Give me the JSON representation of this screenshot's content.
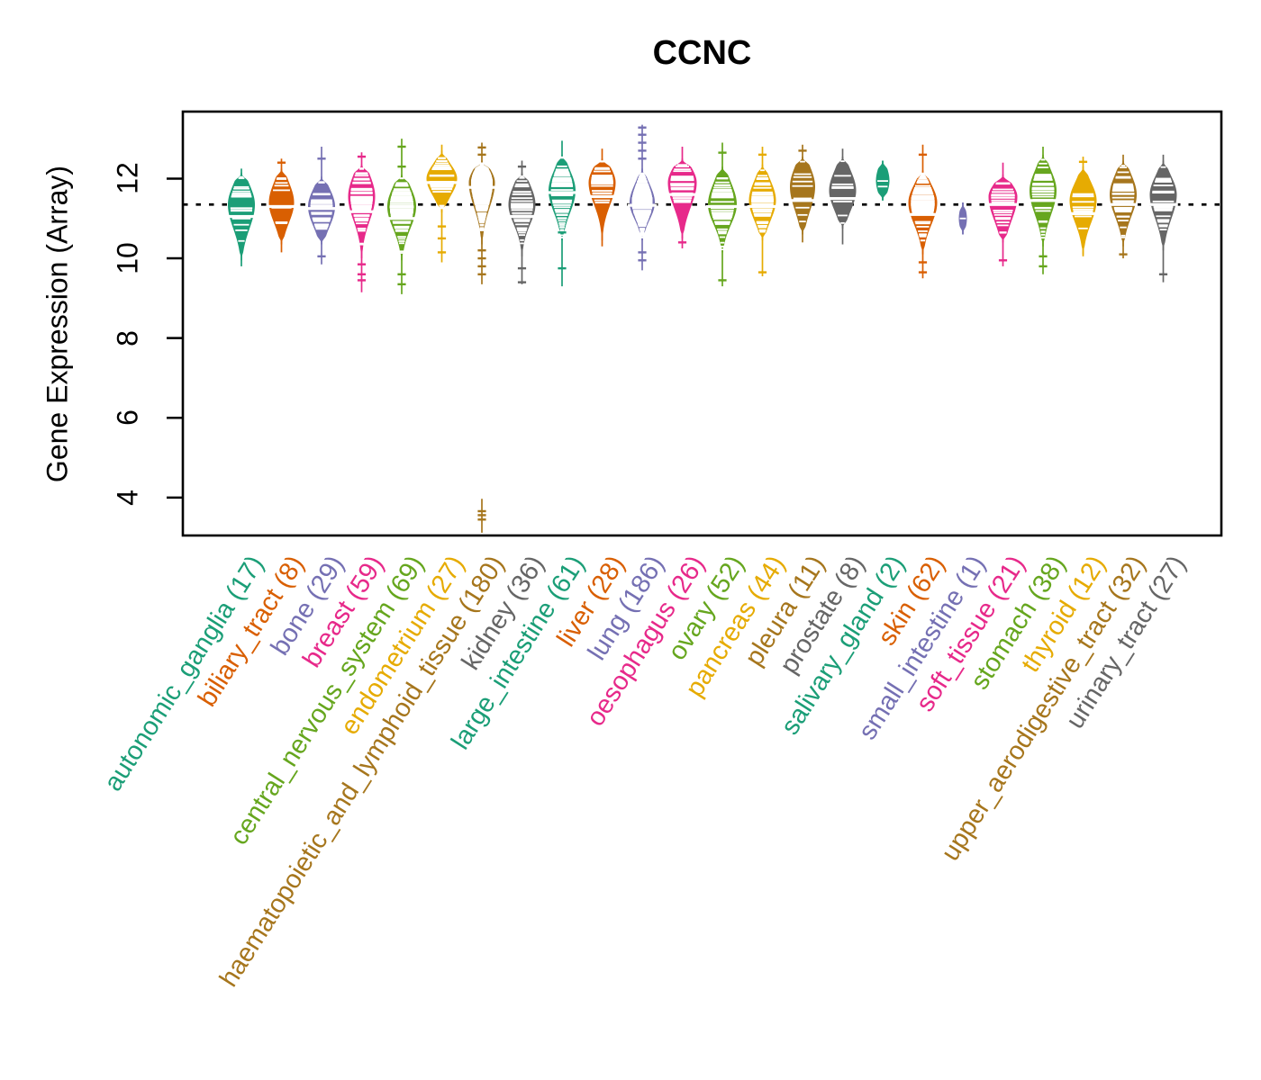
{
  "chart_data": {
    "type": "violin",
    "style": "beanplot",
    "title": "CCNC",
    "ylabel": "Gene Expression (Array)",
    "yticks": [
      4,
      6,
      8,
      10,
      12
    ],
    "ylim": [
      3.05,
      13.68
    ],
    "grid": false,
    "overall_mean_line": 11.35,
    "overall_mean_line_style": "dotted-black",
    "palette_name": "Dark2",
    "categories": [
      {
        "label": "autonomic_ganglia",
        "n": 17,
        "color": "#1B9E77",
        "body": [
          9.95,
          12.15
        ],
        "peak": 11.35,
        "spread_above": 0.5,
        "spread_below": 0.6,
        "median_line": 11.05,
        "whiskers": [
          9.8,
          12.25
        ],
        "marks": [],
        "halfwidth": 15
      },
      {
        "label": "biliary_tract",
        "n": 8,
        "color": "#D95F02",
        "body": [
          10.35,
          12.25
        ],
        "peak": 11.4,
        "spread_above": 0.5,
        "spread_below": 0.5,
        "median_line": 11.3,
        "whiskers": [
          10.15,
          12.5
        ],
        "marks": [
          12.4
        ],
        "halfwidth": 14
      },
      {
        "label": "bone",
        "n": 29,
        "color": "#7570B3",
        "body": [
          10.35,
          12.05
        ],
        "peak": 11.3,
        "spread_above": 0.45,
        "spread_below": 0.5,
        "median_line": 11.25,
        "whiskers": [
          9.85,
          12.8
        ],
        "marks": [
          10.05,
          12.5
        ],
        "halfwidth": 15
      },
      {
        "label": "breast",
        "n": 59,
        "color": "#E7298A",
        "body": [
          10.0,
          12.35
        ],
        "peak": 11.55,
        "spread_above": 0.55,
        "spread_below": 0.6,
        "median_line": 11.17,
        "whiskers": [
          9.15,
          12.66
        ],
        "marks": [
          9.45,
          9.6,
          9.85,
          12.55
        ],
        "halfwidth": 15
      },
      {
        "label": "central_nervous_system",
        "n": 69,
        "color": "#66A61E",
        "body": [
          9.95,
          12.1
        ],
        "peak": 11.3,
        "spread_above": 0.5,
        "spread_below": 0.55,
        "median_line": 11.0,
        "whiskers": [
          9.1,
          13.0
        ],
        "marks": [
          9.35,
          9.6,
          12.3,
          12.8
        ],
        "halfwidth": 16
      },
      {
        "label": "endometrium",
        "n": 27,
        "color": "#E6AB02",
        "body": [
          11.15,
          12.7
        ],
        "peak": 12.0,
        "spread_above": 0.35,
        "spread_below": 0.42,
        "median_line": 11.9,
        "whiskers": [
          9.9,
          12.85
        ],
        "marks": [
          10.15,
          10.5,
          10.8
        ],
        "halfwidth": 17
      },
      {
        "label": "haematopoietic_and_lymphoid_tissue",
        "n": 180,
        "color": "#A6761D",
        "body": [
          10.35,
          12.45
        ],
        "peak": 11.9,
        "spread_above": 0.36,
        "spread_below": 0.62,
        "median_line": 11.78,
        "whiskers": [
          9.35,
          12.9
        ],
        "marks": [
          9.6,
          9.8,
          10.0,
          10.2,
          12.6,
          12.78
        ],
        "outlier_stem": [
          3.12,
          3.97
        ],
        "outlier_marks": [
          3.45,
          3.56,
          3.66
        ],
        "halfwidth": 14.5
      },
      {
        "label": "kidney",
        "n": 36,
        "color": "#666666",
        "body": [
          10.05,
          12.15
        ],
        "peak": 11.35,
        "spread_above": 0.5,
        "spread_below": 0.5,
        "median_line": 11.05,
        "whiskers": [
          9.35,
          12.45
        ],
        "marks": [
          9.4,
          9.75,
          12.3
        ],
        "halfwidth": 15
      },
      {
        "label": "large_intestine",
        "n": 61,
        "color": "#1B9E77",
        "body": [
          10.45,
          12.6
        ],
        "peak": 11.7,
        "spread_above": 0.5,
        "spread_below": 0.55,
        "median_line": 11.65,
        "whiskers": [
          9.3,
          12.95
        ],
        "marks": [
          9.75,
          10.65
        ],
        "halfwidth": 15
      },
      {
        "label": "liver",
        "n": 28,
        "color": "#D95F02",
        "body": [
          10.45,
          12.5
        ],
        "peak": 11.9,
        "spread_above": 0.4,
        "spread_below": 0.55,
        "median_line": 11.55,
        "whiskers": [
          10.3,
          12.75
        ],
        "marks": [],
        "halfwidth": 15
      },
      {
        "label": "lung",
        "n": 186,
        "color": "#7570B3",
        "body": [
          10.45,
          12.25
        ],
        "peak": 11.4,
        "spread_above": 0.45,
        "spread_below": 0.42,
        "median_line": 11.33,
        "whiskers": [
          9.7,
          13.35
        ],
        "marks": [
          9.95,
          10.15,
          12.5,
          12.7,
          12.9,
          13.1,
          13.28
        ],
        "halfwidth": 14
      },
      {
        "label": "oesophagus",
        "n": 26,
        "color": "#E7298A",
        "body": [
          10.5,
          12.5
        ],
        "peak": 11.9,
        "spread_above": 0.4,
        "spread_below": 0.6,
        "median_line": 11.6,
        "whiskers": [
          10.25,
          12.8
        ],
        "marks": [
          10.4
        ],
        "halfwidth": 16
      },
      {
        "label": "ovary",
        "n": 52,
        "color": "#66A61E",
        "body": [
          10.15,
          12.3
        ],
        "peak": 11.35,
        "spread_above": 0.55,
        "spread_below": 0.5,
        "median_line": 11.3,
        "whiskers": [
          9.3,
          12.9
        ],
        "marks": [
          9.45,
          12.65
        ],
        "halfwidth": 16
      },
      {
        "label": "pancreas",
        "n": 44,
        "color": "#E6AB02",
        "body": [
          10.45,
          12.35
        ],
        "peak": 11.45,
        "spread_above": 0.5,
        "spread_below": 0.5,
        "median_line": 11.3,
        "whiskers": [
          9.55,
          12.8
        ],
        "marks": [
          9.65,
          12.6
        ],
        "halfwidth": 15
      },
      {
        "label": "pleura",
        "n": 11,
        "color": "#A6761D",
        "body": [
          10.6,
          12.55
        ],
        "peak": 11.8,
        "spread_above": 0.5,
        "spread_below": 0.6,
        "median_line": 11.45,
        "whiskers": [
          10.4,
          12.85
        ],
        "marks": [
          12.7
        ],
        "halfwidth": 14
      },
      {
        "label": "prostate",
        "n": 8,
        "color": "#666666",
        "body": [
          10.75,
          12.55
        ],
        "peak": 11.7,
        "spread_above": 0.5,
        "spread_below": 0.5,
        "median_line": 11.5,
        "whiskers": [
          10.35,
          12.75
        ],
        "marks": [],
        "halfwidth": 15
      },
      {
        "label": "salivary_gland",
        "n": 2,
        "color": "#1B9E77",
        "body": [
          11.45,
          12.45
        ],
        "peak": 11.95,
        "spread_above": 0.35,
        "spread_below": 0.35,
        "median_line": null,
        "whiskers": [
          11.45,
          12.45
        ],
        "lines": [
          11.8,
          11.94
        ],
        "marks": [],
        "halfwidth": 7.5
      },
      {
        "label": "skin",
        "n": 62,
        "color": "#D95F02",
        "body": [
          10.1,
          12.2
        ],
        "peak": 11.4,
        "spread_above": 0.45,
        "spread_below": 0.55,
        "median_line": 11.1,
        "whiskers": [
          9.5,
          12.85
        ],
        "marks": [
          9.65,
          9.9,
          12.6
        ],
        "halfwidth": 16
      },
      {
        "label": "small_intestine",
        "n": 1,
        "color": "#7570B3",
        "body": [
          10.6,
          11.4
        ],
        "peak": 11.0,
        "spread_above": 0.28,
        "spread_below": 0.28,
        "median_line": null,
        "whiskers": [
          10.6,
          11.4
        ],
        "lines": [
          11.0
        ],
        "marks": [],
        "halfwidth": 4.5
      },
      {
        "label": "soft_tissue",
        "n": 21,
        "color": "#E7298A",
        "body": [
          10.4,
          12.1
        ],
        "peak": 11.55,
        "spread_above": 0.33,
        "spread_below": 0.6,
        "median_line": 11.35,
        "whiskers": [
          9.8,
          12.4
        ],
        "marks": [
          9.95
        ],
        "halfwidth": 16
      },
      {
        "label": "stomach",
        "n": 38,
        "color": "#66A61E",
        "body": [
          10.3,
          12.6
        ],
        "peak": 11.7,
        "spread_above": 0.5,
        "spread_below": 0.6,
        "median_line": 11.45,
        "whiskers": [
          9.6,
          12.8
        ],
        "marks": [
          9.8,
          10.05
        ],
        "halfwidth": 15
      },
      {
        "label": "thyroid",
        "n": 12,
        "color": "#E6AB02",
        "body": [
          10.1,
          12.3
        ],
        "peak": 11.45,
        "spread_above": 0.45,
        "spread_below": 0.55,
        "median_line": 11.12,
        "whiskers": [
          10.05,
          12.55
        ],
        "marks": [
          12.42
        ],
        "halfwidth": 15
      },
      {
        "label": "upper_aerodigestive_tract",
        "n": 32,
        "color": "#A6761D",
        "body": [
          10.3,
          12.45
        ],
        "peak": 11.6,
        "spread_above": 0.5,
        "spread_below": 0.55,
        "median_line": 11.35,
        "whiskers": [
          10.0,
          12.6
        ],
        "marks": [
          10.1
        ],
        "halfwidth": 15
      },
      {
        "label": "urinary_tract",
        "n": 27,
        "color": "#666666",
        "body": [
          10.2,
          12.45
        ],
        "peak": 11.6,
        "spread_above": 0.45,
        "spread_below": 0.6,
        "median_line": 11.35,
        "whiskers": [
          9.4,
          12.6
        ],
        "marks": [
          9.6
        ],
        "halfwidth": 15
      }
    ]
  }
}
